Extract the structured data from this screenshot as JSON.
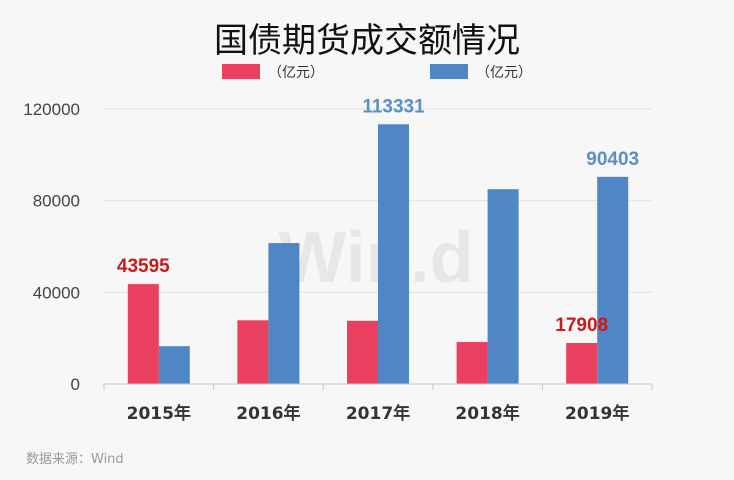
{
  "chart_data": {
    "type": "bar",
    "title": "国债期货成交额情况",
    "categories": [
      "2015年",
      "2016年",
      "2017年",
      "2018年",
      "2019年"
    ],
    "series": [
      {
        "name": "（亿元）",
        "color": "#e8405e",
        "values": [
          43595,
          27800,
          27600,
          18300,
          17908
        ]
      },
      {
        "name": "（亿元）",
        "color": "#4f86c6",
        "values": [
          16500,
          61500,
          113331,
          85000,
          90403
        ]
      }
    ],
    "ylim": [
      0,
      120000
    ],
    "yticks": [
      "0",
      "40000",
      "80000",
      "120000"
    ],
    "ytick_values": [
      0,
      40000,
      80000,
      120000
    ],
    "grid": true,
    "legend": "top",
    "data_labels": [
      {
        "series": 0,
        "index": 0,
        "text": "43595",
        "color": "#cc1a1a"
      },
      {
        "series": 1,
        "index": 2,
        "text": "113331",
        "color": "#5b8fc7"
      },
      {
        "series": 0,
        "index": 4,
        "text": "17908",
        "color": "#cc1a1a"
      },
      {
        "series": 1,
        "index": 4,
        "text": "90403",
        "color": "#5b8fc7"
      }
    ],
    "watermark": "Win.d",
    "source": "数据来源：Wind"
  }
}
